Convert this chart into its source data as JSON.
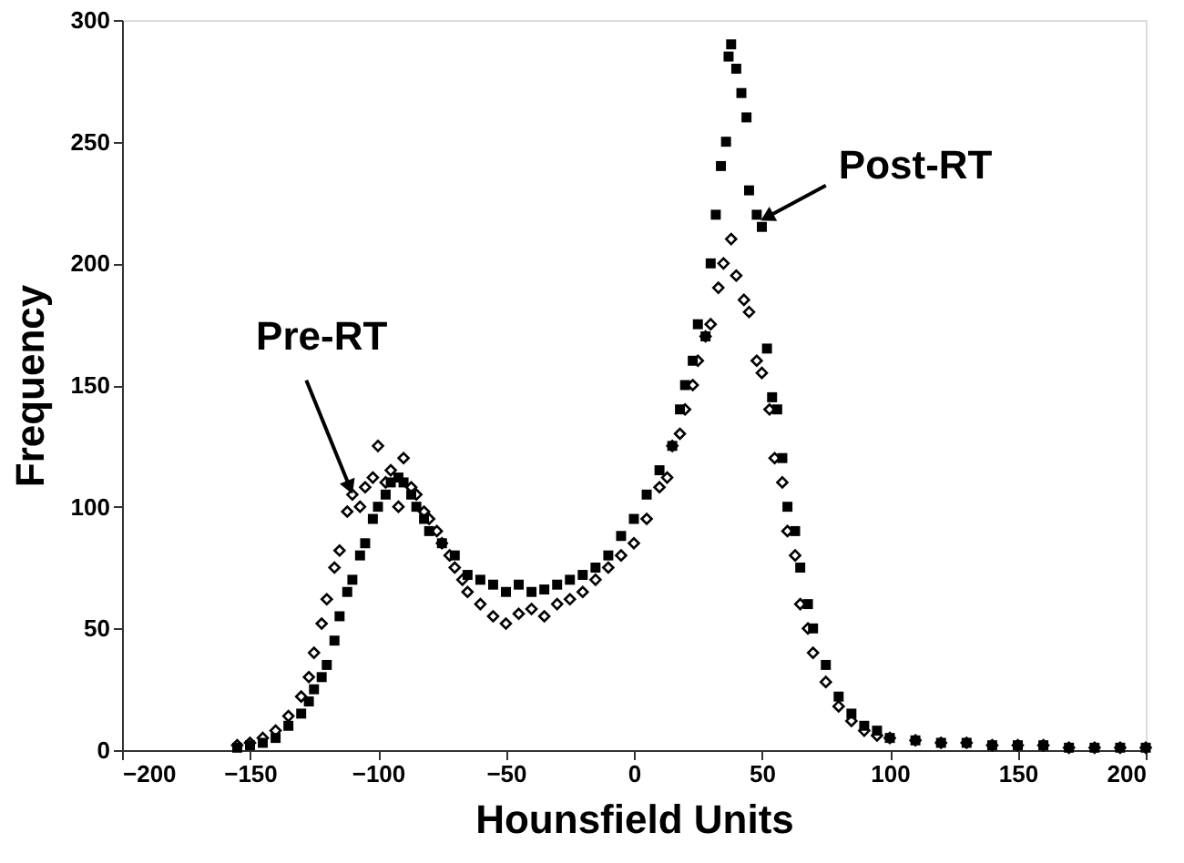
{
  "chart_data": {
    "type": "scatter",
    "xlabel": "Hounsfield Units",
    "ylabel": "Frequency",
    "xlim": [
      -200,
      200
    ],
    "xticks": [
      -200,
      -150,
      -100,
      -50,
      0,
      50,
      100,
      150,
      200
    ],
    "ylim": [
      0,
      300
    ],
    "yticks": [
      0,
      50,
      100,
      150,
      200,
      250,
      300
    ],
    "grid": false,
    "series": [
      {
        "name": "Pre-RT",
        "color": "#000000",
        "marker": "diamond",
        "x": [
          -155,
          -150,
          -145,
          -140,
          -135,
          -130,
          -127,
          -125,
          -122,
          -120,
          -117,
          -115,
          -112,
          -110,
          -107,
          -105,
          -102,
          -100,
          -97,
          -95,
          -92,
          -90,
          -87,
          -85,
          -82,
          -80,
          -77,
          -75,
          -72,
          -70,
          -67,
          -65,
          -60,
          -55,
          -50,
          -45,
          -40,
          -35,
          -30,
          -25,
          -20,
          -15,
          -10,
          -5,
          0,
          5,
          10,
          13,
          15,
          18,
          20,
          23,
          25,
          28,
          30,
          33,
          35,
          38,
          40,
          43,
          45,
          48,
          50,
          53,
          55,
          58,
          60,
          63,
          65,
          68,
          70,
          75,
          80,
          85,
          90,
          95,
          100,
          110,
          120,
          130,
          140,
          150,
          160,
          170,
          180,
          190,
          200
        ],
        "values": [
          2,
          3,
          5,
          8,
          14,
          22,
          30,
          40,
          52,
          62,
          75,
          82,
          98,
          105,
          100,
          108,
          112,
          125,
          110,
          115,
          100,
          120,
          108,
          105,
          98,
          95,
          90,
          85,
          80,
          75,
          70,
          65,
          60,
          55,
          52,
          56,
          58,
          55,
          60,
          62,
          65,
          70,
          75,
          80,
          85,
          95,
          108,
          112,
          125,
          130,
          140,
          150,
          160,
          170,
          175,
          190,
          200,
          210,
          195,
          185,
          180,
          160,
          155,
          140,
          120,
          110,
          90,
          80,
          60,
          50,
          40,
          28,
          18,
          12,
          8,
          6,
          5,
          4,
          3,
          3,
          2,
          2,
          2,
          1,
          1,
          1,
          1
        ]
      },
      {
        "name": "Post-RT",
        "color": "#000000",
        "marker": "square",
        "x": [
          -155,
          -150,
          -145,
          -140,
          -135,
          -130,
          -127,
          -125,
          -122,
          -120,
          -117,
          -115,
          -112,
          -110,
          -107,
          -105,
          -102,
          -100,
          -97,
          -95,
          -92,
          -90,
          -87,
          -85,
          -82,
          -80,
          -75,
          -70,
          -65,
          -60,
          -55,
          -50,
          -45,
          -40,
          -35,
          -30,
          -25,
          -20,
          -15,
          -10,
          -5,
          0,
          5,
          10,
          15,
          18,
          20,
          23,
          25,
          28,
          30,
          32,
          34,
          36,
          37,
          38,
          40,
          42,
          44,
          45,
          48,
          50,
          52,
          54,
          56,
          58,
          60,
          63,
          65,
          68,
          70,
          75,
          80,
          85,
          90,
          95,
          100,
          110,
          120,
          130,
          140,
          150,
          160,
          170,
          180,
          190,
          200
        ],
        "values": [
          1,
          2,
          3,
          5,
          10,
          15,
          20,
          25,
          30,
          35,
          45,
          55,
          65,
          70,
          80,
          85,
          95,
          100,
          105,
          110,
          112,
          110,
          105,
          100,
          95,
          90,
          85,
          80,
          72,
          70,
          68,
          65,
          68,
          65,
          66,
          68,
          70,
          72,
          75,
          80,
          88,
          95,
          105,
          115,
          125,
          140,
          150,
          160,
          175,
          170,
          200,
          220,
          240,
          250,
          285,
          290,
          280,
          270,
          260,
          230,
          220,
          215,
          165,
          145,
          140,
          120,
          100,
          90,
          75,
          60,
          50,
          35,
          22,
          15,
          10,
          8,
          5,
          4,
          3,
          3,
          2,
          2,
          2,
          1,
          1,
          1,
          1
        ]
      }
    ]
  }
}
